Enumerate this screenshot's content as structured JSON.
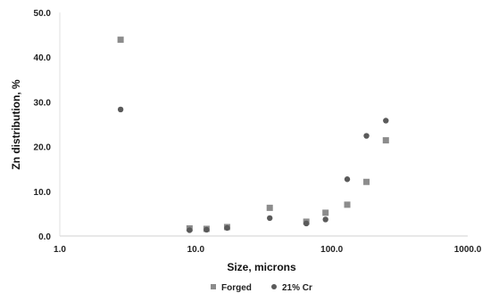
{
  "chart_data": {
    "type": "scatter",
    "xlabel": "Size, microns",
    "ylabel": "Zn distribution, %",
    "x_scale": "log",
    "xlim": [
      1.0,
      1000.0
    ],
    "ylim": [
      0.0,
      50.0
    ],
    "x_ticks": [
      "1.0",
      "10.0",
      "100.0",
      "1000.0"
    ],
    "y_ticks": [
      "0.0",
      "10.0",
      "20.0",
      "30.0",
      "40.0",
      "50.0"
    ],
    "grid": false,
    "legend_position": "bottom",
    "series": [
      {
        "name": "Forged",
        "marker": "square",
        "color": "#8c8c8c",
        "points": [
          [
            2.8,
            43.9
          ],
          [
            9.0,
            1.7
          ],
          [
            12.0,
            1.6
          ],
          [
            17.0,
            2.0
          ],
          [
            35.0,
            6.3
          ],
          [
            65.0,
            3.2
          ],
          [
            90.0,
            5.2
          ],
          [
            130.0,
            7.0
          ],
          [
            180.0,
            12.1
          ],
          [
            250.0,
            21.4
          ]
        ]
      },
      {
        "name": "21% Cr",
        "marker": "circle",
        "color": "#5a5a5a",
        "points": [
          [
            2.8,
            28.3
          ],
          [
            9.0,
            1.3
          ],
          [
            12.0,
            1.4
          ],
          [
            17.0,
            1.8
          ],
          [
            35.0,
            4.0
          ],
          [
            65.0,
            2.8
          ],
          [
            90.0,
            3.7
          ],
          [
            130.0,
            12.7
          ],
          [
            180.0,
            22.4
          ],
          [
            250.0,
            25.8
          ]
        ]
      }
    ]
  }
}
